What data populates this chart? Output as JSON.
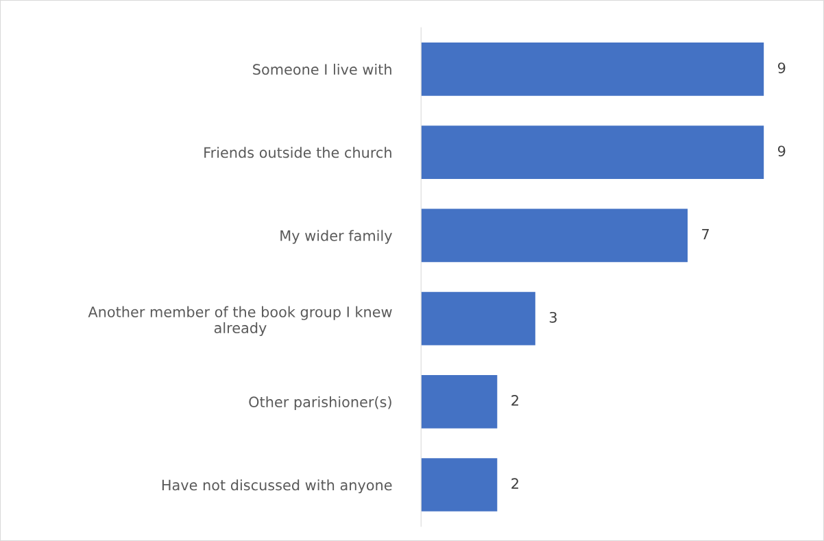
{
  "chart_data": {
    "type": "bar",
    "orientation": "horizontal",
    "categories": [
      "Someone I live with",
      "Friends outside the church",
      "My wider family",
      "Another member of the book group I knew already",
      "Other parishioner(s)",
      "Have not discussed with anyone"
    ],
    "values": [
      9,
      9,
      7,
      3,
      2,
      2
    ],
    "color": "#4472c4",
    "data_labels": true
  }
}
